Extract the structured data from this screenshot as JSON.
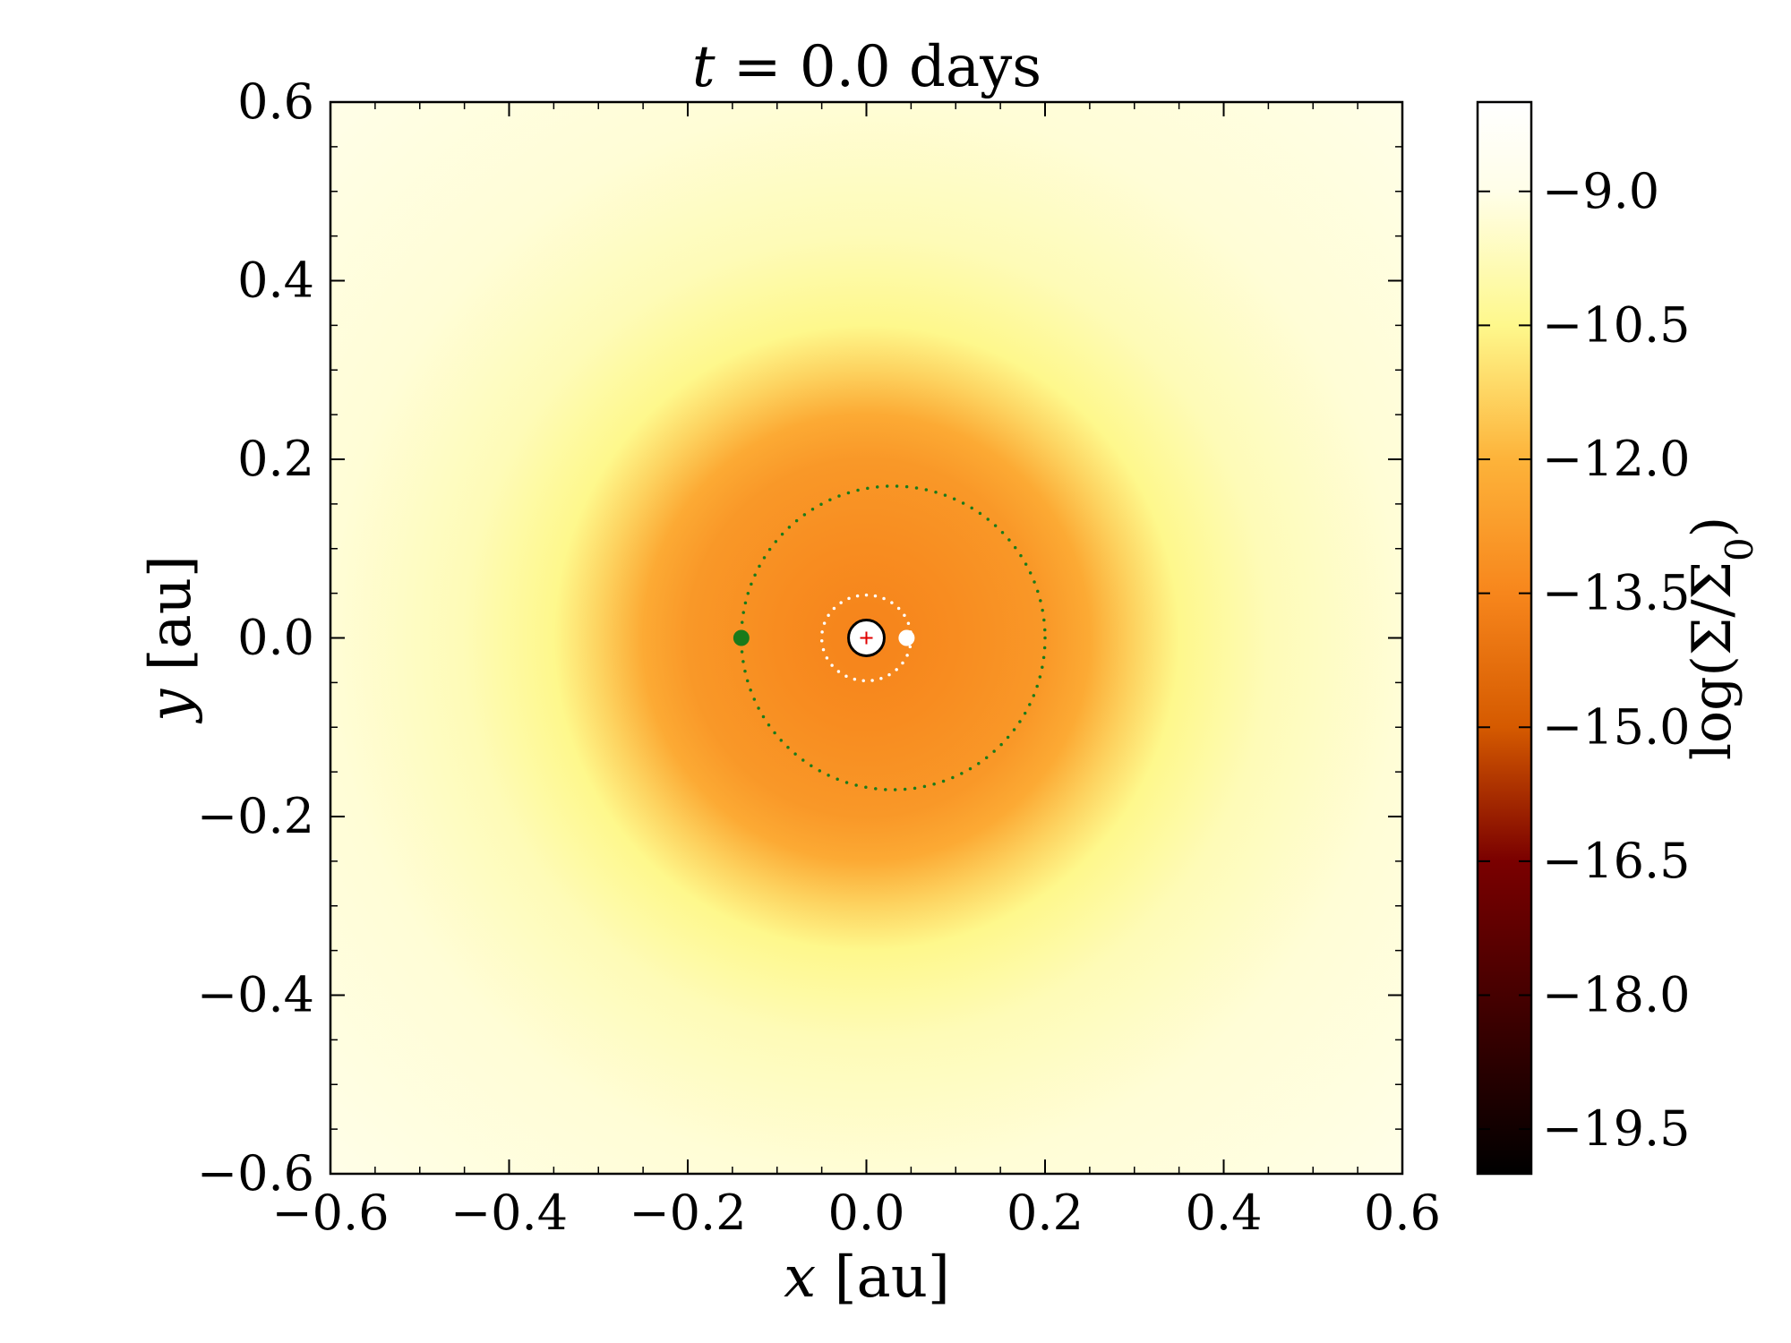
{
  "chart_data": {
    "type": "heatmap",
    "title": {
      "var": "t",
      "rest": " = 0.0 days"
    },
    "xlabel": {
      "var": "x",
      "unit": " [au]"
    },
    "ylabel": {
      "var": "y",
      "unit": " [au]"
    },
    "xlim": [
      -0.6,
      0.6
    ],
    "ylim": [
      -0.6,
      0.6
    ],
    "xticks": [
      -0.6,
      -0.4,
      -0.2,
      0.0,
      0.2,
      0.4,
      0.6
    ],
    "yticks": [
      -0.6,
      -0.4,
      -0.2,
      0.0,
      0.2,
      0.4,
      0.6
    ],
    "xtick_labels": [
      "−0.6",
      "−0.4",
      "−0.2",
      "0.0",
      "0.2",
      "0.4",
      "0.6"
    ],
    "ytick_labels": [
      "−0.6",
      "−0.4",
      "−0.2",
      "0.0",
      "0.2",
      "0.4",
      "0.6"
    ],
    "minor_tick_step": 0.05,
    "field": {
      "description_units": "log(Sigma/Sigma0) vs radius in au",
      "radial_profile": [
        {
          "r": 0.0,
          "value": -13.6
        },
        {
          "r": 0.1,
          "value": -13.3
        },
        {
          "r": 0.2,
          "value": -12.9
        },
        {
          "r": 0.25,
          "value": -12.3
        },
        {
          "r": 0.3,
          "value": -11.3
        },
        {
          "r": 0.35,
          "value": -10.5
        },
        {
          "r": 0.45,
          "value": -9.8
        },
        {
          "r": 0.6,
          "value": -9.3
        },
        {
          "r": 0.85,
          "value": -9.0
        }
      ]
    },
    "colorbar": {
      "label": {
        "prefix": "log(Σ/Σ",
        "sub": "0",
        "suffix": ")"
      },
      "range": [
        -20.0,
        -8.0
      ],
      "ticks": [
        -9.0,
        -10.5,
        -12.0,
        -13.5,
        -15.0,
        -16.5,
        -18.0,
        -19.5
      ],
      "tick_labels": [
        "−9.0",
        "−10.5",
        "−12.0",
        "−13.5",
        "−15.0",
        "−16.5",
        "−18.0",
        "−19.5"
      ],
      "colormap": "afmhot",
      "colors": [
        {
          "value": -20.0,
          "color": "#000000"
        },
        {
          "value": -16.5,
          "color": "#7a0000"
        },
        {
          "value": -15.0,
          "color": "#d55a00"
        },
        {
          "value": -13.5,
          "color": "#f7861c"
        },
        {
          "value": -12.0,
          "color": "#fdb33a"
        },
        {
          "value": -10.5,
          "color": "#fef88c"
        },
        {
          "value": -9.0,
          "color": "#fffee8"
        },
        {
          "value": -8.0,
          "color": "#ffffff"
        }
      ]
    },
    "overlays": {
      "star": {
        "x": 0.0,
        "y": 0.0,
        "radius": 0.02,
        "fill": "#ffffff",
        "stroke": "#000000",
        "center_marker_color": "#e00000"
      },
      "inner_planet": {
        "x": 0.045,
        "y": 0.0,
        "color": "#ffffff"
      },
      "inner_orbit": {
        "cx": 0.0,
        "cy": 0.0,
        "rx": 0.05,
        "ry": 0.048,
        "color": "#ffffff"
      },
      "outer_planet": {
        "x": -0.14,
        "y": 0.0,
        "color": "#1a7a1a"
      },
      "outer_orbit": {
        "cx": 0.03,
        "cy": 0.0,
        "rx": 0.17,
        "ry": 0.17,
        "color": "#1a7a1a"
      }
    }
  }
}
